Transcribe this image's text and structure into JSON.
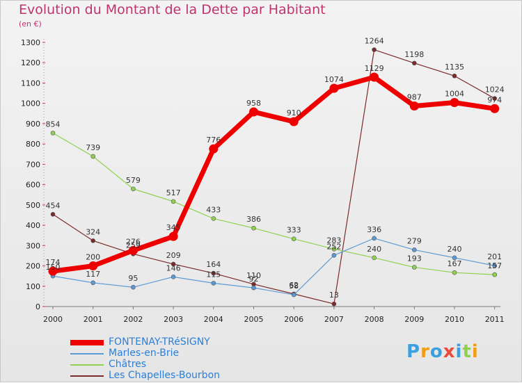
{
  "header": {
    "title": "Evolution du Montant de la Dette par Habitant",
    "subtitle": "(en €)"
  },
  "chart_data": {
    "type": "line",
    "title": "Evolution du Montant de la Dette par Habitant",
    "ylabel": "(en €)",
    "xlabel": "",
    "x": [
      "2000",
      "2001",
      "2002",
      "2003",
      "2004",
      "2005",
      "2006",
      "2007",
      "2008",
      "2009",
      "2010",
      "2011"
    ],
    "yticks": [
      0,
      100,
      200,
      300,
      400,
      500,
      600,
      700,
      800,
      900,
      1000,
      1100,
      1200,
      1300
    ],
    "ylim": [
      0,
      1300
    ],
    "grid": false,
    "legend_position": "bottom-left",
    "series": [
      {
        "name": "FONTENAY-TRéSIGNY",
        "color": "#ee0000",
        "values": [
          174,
          200,
          276,
          345,
          776,
          958,
          910,
          1074,
          1129,
          987,
          1004,
          974
        ]
      },
      {
        "name": "Marles-en-Brie",
        "color": "#5b9bd5",
        "values": [
          150,
          117,
          95,
          146,
          115,
          92,
          58,
          252,
          336,
          279,
          240,
          201
        ]
      },
      {
        "name": "Châtres",
        "color": "#8fd14f",
        "values": [
          854,
          739,
          579,
          517,
          433,
          386,
          333,
          283,
          240,
          193,
          167,
          157
        ]
      },
      {
        "name": "Les Chapelles-Bourbon",
        "color": "#7a2a2a",
        "values": [
          454,
          324,
          259,
          209,
          164,
          110,
          62,
          13,
          1264,
          1198,
          1135,
          1024
        ]
      }
    ]
  },
  "logo": {
    "letters": [
      "P",
      "r",
      "o",
      "x",
      "i",
      "t",
      "i"
    ],
    "colors": [
      "#3aa0e0",
      "#f39c12",
      "#3aa0e0",
      "#e74c3c",
      "#3aa0e0",
      "#8fd14f",
      "#f39c12"
    ]
  }
}
